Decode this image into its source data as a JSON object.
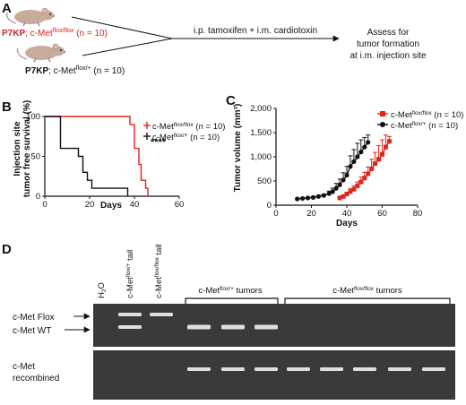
{
  "panels": {
    "a": {
      "letter": "A",
      "mouse1": {
        "prefix": "P7KP",
        "rest": "; c-Met",
        "sup": "flox/flox",
        "n": " (n = 10)"
      },
      "mouse2": {
        "prefix": "P7KP",
        "rest": "; c-Met",
        "sup": "flox/+",
        "n": " (n = 10)"
      },
      "treatment": "i.p. tamoxifen + i.m. cardiotoxin",
      "assess": [
        "Assess for",
        "tumor formation",
        "at i.m. injection site"
      ],
      "colors": {
        "mouse_body": "#c7ac9c",
        "mouse_dark": "#8e6f60",
        "mouse1_text": "#d62020"
      }
    },
    "b": {
      "letter": "B",
      "significance": "****"
    },
    "c": {
      "letter": "C"
    },
    "d": {
      "letter": "D",
      "lanes": [
        "H2O",
        "c-Met flox/+ tail",
        "c-Met flox/flox tail"
      ],
      "lane_parts": {
        "h2o": {
          "main": "H",
          "sub": "2",
          "tail": "O"
        },
        "het": {
          "main": "c-Met",
          "sup": "flox/+",
          "tail": " tail"
        },
        "hom": {
          "main": "c-Met",
          "sup": "flox/flox",
          "tail": " tail"
        }
      },
      "group1": {
        "main": "c-Met",
        "sup": "flox/+",
        "tail": " tumors"
      },
      "group2": {
        "main": "c-Met",
        "sup": "flox/flox",
        "tail": " tumors"
      },
      "band_labels": {
        "flox": "c-Met Flox",
        "wt": "c-Met WT",
        "recombined1": "c-Met",
        "recombined2": "recombined"
      },
      "gel_top_lanes": [
        {
          "bands": []
        },
        {
          "bands": [
            "flox",
            "wt"
          ]
        },
        {
          "bands": [
            "flox"
          ]
        },
        {
          "bands": [
            "wt"
          ]
        },
        {
          "bands": [
            "wt"
          ]
        },
        {
          "bands": [
            "wt"
          ]
        },
        {
          "bands": []
        },
        {
          "bands": []
        },
        {
          "bands": []
        },
        {
          "bands": []
        },
        {
          "bands": []
        }
      ],
      "gel_bottom_lanes": [
        {
          "band": false
        },
        {
          "band": false
        },
        {
          "band": false
        },
        {
          "band": true
        },
        {
          "band": true
        },
        {
          "band": true
        },
        {
          "band": true
        },
        {
          "band": true
        },
        {
          "band": true
        },
        {
          "band": true
        },
        {
          "band": true
        }
      ]
    }
  },
  "chart_data": [
    {
      "type": "line",
      "panel": "B",
      "xlabel": "Days",
      "ylabel": [
        "Injection site",
        "tumor free survival (%)"
      ],
      "xlim": [
        0,
        60
      ],
      "ylim": [
        0,
        100
      ],
      "xticks": [
        0,
        20,
        40,
        60
      ],
      "yticks": [
        0,
        50,
        100
      ],
      "legend_position": "top-right",
      "series": [
        {
          "name": "c-Met flox/flox (n = 10)",
          "label_main": "c-Met",
          "label_sup": "flox/flox",
          "label_n": " (n = 10)",
          "color": "#e2231a",
          "steps": [
            [
              0,
              100
            ],
            [
              38,
              100
            ],
            [
              38,
              90
            ],
            [
              40,
              90
            ],
            [
              40,
              60
            ],
            [
              42,
              60
            ],
            [
              42,
              40
            ],
            [
              43,
              40
            ],
            [
              43,
              20
            ],
            [
              45,
              20
            ],
            [
              45,
              10
            ],
            [
              46,
              10
            ],
            [
              46,
              0
            ]
          ]
        },
        {
          "name": "c-Met flox/+ (n = 10)",
          "label_main": "c-Met",
          "label_sup": "flox/+",
          "label_n": " (n = 10)",
          "color": "#111111",
          "steps": [
            [
              0,
              100
            ],
            [
              7,
              100
            ],
            [
              7,
              60
            ],
            [
              15,
              60
            ],
            [
              15,
              50
            ],
            [
              17,
              50
            ],
            [
              17,
              30
            ],
            [
              19,
              30
            ],
            [
              19,
              20
            ],
            [
              21,
              20
            ],
            [
              21,
              10
            ],
            [
              37,
              10
            ],
            [
              37,
              0
            ]
          ]
        }
      ]
    },
    {
      "type": "line",
      "panel": "C",
      "xlabel": "Days",
      "ylabel": [
        "Tumor volume (mm³)"
      ],
      "xlim": [
        0,
        80
      ],
      "ylim": [
        0,
        2000
      ],
      "xticks": [
        0,
        20,
        40,
        60,
        80
      ],
      "yticks": [
        0,
        500,
        1000,
        1500,
        2000
      ],
      "ytick_labels": [
        "0",
        "500",
        "1,000",
        "1,500",
        "2,000"
      ],
      "legend_position": "top-right",
      "series": [
        {
          "name": "c-Met flox/flox (n = 10)",
          "label_main": "c-Met",
          "label_sup": "flox/flox",
          "label_n": " (n = 10)",
          "color": "#e2231a",
          "x": [
            36,
            38,
            40,
            42,
            44,
            46,
            48,
            50,
            52,
            54,
            56,
            58,
            60,
            62,
            64
          ],
          "y": [
            150,
            180,
            230,
            280,
            330,
            400,
            480,
            560,
            650,
            750,
            860,
            950,
            1050,
            1200,
            1320
          ],
          "err": [
            20,
            30,
            40,
            60,
            70,
            80,
            100,
            120,
            140,
            200,
            230,
            280,
            300,
            250,
            100
          ]
        },
        {
          "name": "c-Met flox/+ (n = 10)",
          "label_main": "c-Met",
          "label_sup": "flox/+",
          "label_n": " (n = 10)",
          "color": "#111111",
          "x": [
            12,
            15,
            18,
            21,
            24,
            27,
            30,
            32,
            34,
            36,
            38,
            40,
            42,
            44,
            46,
            48,
            50,
            52
          ],
          "y": [
            130,
            140,
            150,
            160,
            180,
            200,
            240,
            280,
            350,
            420,
            520,
            620,
            800,
            900,
            1000,
            1100,
            1200,
            1300
          ],
          "err": [
            10,
            10,
            15,
            20,
            25,
            30,
            50,
            70,
            100,
            120,
            150,
            180,
            220,
            250,
            280,
            250,
            200,
            150
          ]
        }
      ]
    }
  ]
}
